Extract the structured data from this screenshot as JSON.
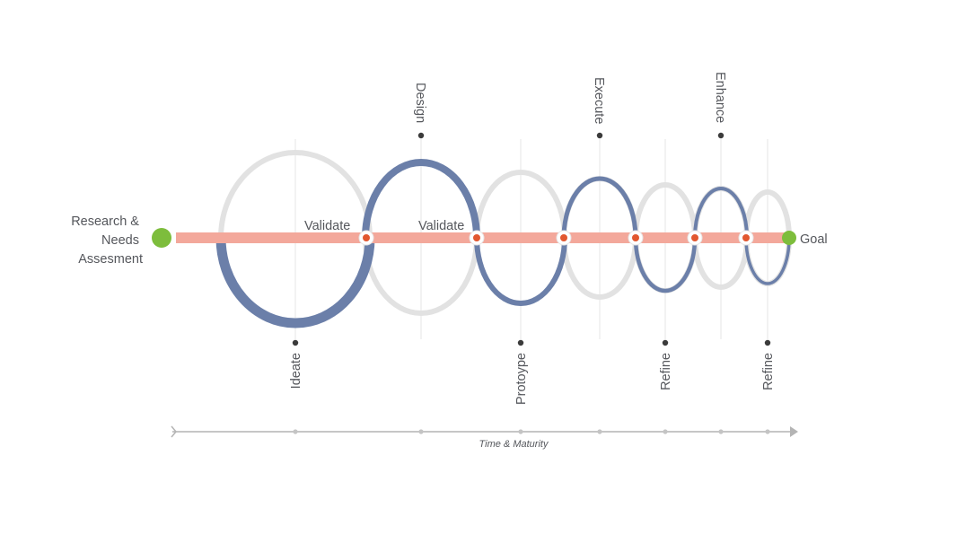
{
  "diagram": {
    "start_label_lines": [
      "Research &",
      "Needs",
      "Assesment"
    ],
    "goal_label": "Goal",
    "validate_labels": [
      "Validate",
      "Validate"
    ],
    "upper_stages": [
      "Design",
      "Execute",
      "Enhance"
    ],
    "lower_stages": [
      "Ideate",
      "Protoype",
      "Refine",
      "Refine"
    ],
    "axis_label": "Time & Maturity",
    "colors": {
      "main_line": "#f3a89b",
      "loop_blue": "#6b7fa9",
      "loop_gray": "#e2e2e2",
      "node_green": "#7dbd3c",
      "node_orange": "#e2572f",
      "axis_gray": "#b4b4b4",
      "guide_gray": "#e6e6e6",
      "dot_dark": "#3b3b3b"
    }
  }
}
